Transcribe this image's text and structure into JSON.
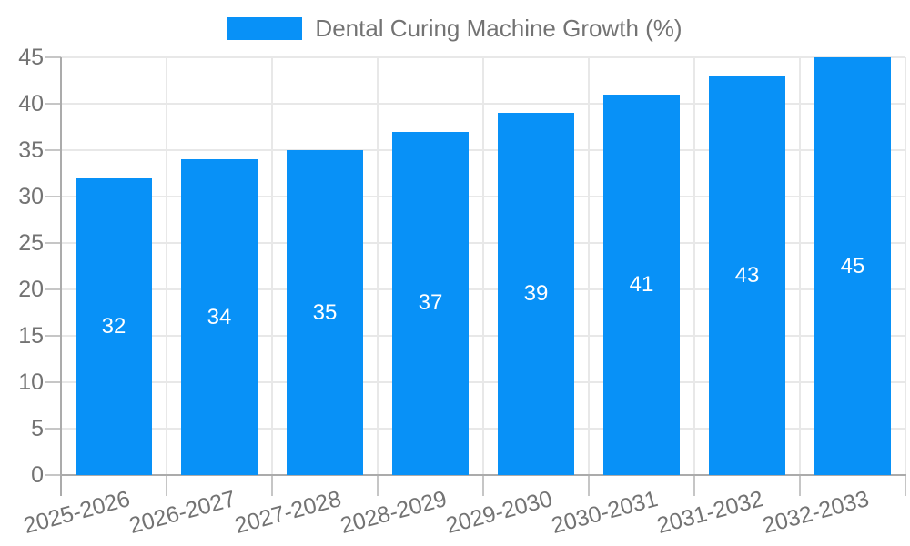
{
  "chart_data": {
    "type": "bar",
    "title": "Dental Curing Machine Growth (%)",
    "categories": [
      "2025-2026",
      "2026-2027",
      "2027-2028",
      "2028-2029",
      "2029-2030",
      "2030-2031",
      "2031-2032",
      "2032-2033"
    ],
    "values": [
      32,
      34,
      35,
      37,
      39,
      41,
      43,
      45
    ],
    "xlabel": "",
    "ylabel": "",
    "ylim": [
      0,
      45
    ],
    "ytick_step": 5,
    "yticks": [
      0,
      5,
      10,
      15,
      20,
      25,
      30,
      35,
      40,
      45
    ],
    "grid": true,
    "legend_position": "top-center",
    "bar_value_labels": [
      "32",
      "34",
      "35",
      "37",
      "39",
      "41",
      "43",
      "45"
    ],
    "bar_value_label_position": "inside-middle"
  },
  "colors": {
    "bar": "#0891f7",
    "text": "#737373",
    "grid": "#e8e8e8",
    "axis": "#ababab",
    "tick": "#c6c6c6",
    "value_label": "#ffffff",
    "background": "#ffffff"
  }
}
